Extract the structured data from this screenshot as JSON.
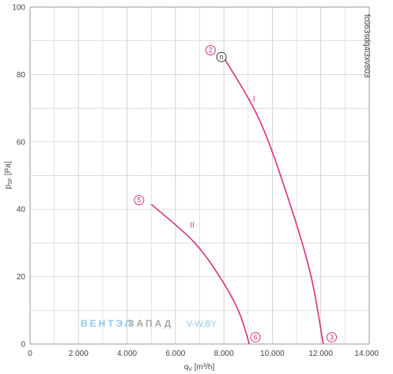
{
  "chart_data": {
    "type": "line",
    "xlabel": "qV [m³/h]",
    "ylabel": "pSF [Pa]",
    "xlim": [
      0,
      14000
    ],
    "ylim": [
      0,
      100
    ],
    "x_ticks": [
      0,
      2000,
      4000,
      6000,
      8000,
      10000,
      12000,
      14000
    ],
    "x_tick_labels": [
      "0",
      "2.000",
      "4.000",
      "6.000",
      "8.000",
      "10.000",
      "12.000",
      "14.000"
    ],
    "y_ticks": [
      0,
      20,
      40,
      60,
      80,
      100
    ],
    "y_tick_labels": [
      "0",
      "20",
      "40",
      "60",
      "80",
      "100"
    ],
    "grid": true,
    "series": [
      {
        "name": "I",
        "color": "#d6307e",
        "x": [
          8000,
          9500,
          10800,
          11600,
          12100
        ],
        "y": [
          85,
          66,
          40,
          20,
          0
        ]
      },
      {
        "name": "II",
        "color": "#d6307e",
        "x": [
          5000,
          6800,
          8000,
          8650,
          9050
        ],
        "y": [
          41.5,
          30,
          18,
          9,
          0
        ]
      }
    ],
    "markers": [
      {
        "label": "2",
        "x": 7450,
        "y": 87.2
      },
      {
        "label": "5",
        "x": 4500,
        "y": 42.7
      },
      {
        "label": "6",
        "x": 9300,
        "y": 2
      },
      {
        "label": "3",
        "x": 12450,
        "y": 2
      }
    ],
    "operating_point": {
      "label": "n",
      "x": 7900,
      "y": 85.2
    },
    "series_labels": [
      {
        "text": "I",
        "x": 9200,
        "y": 72
      },
      {
        "text": "II",
        "x": 6600,
        "y": 34.5
      }
    ],
    "side_code": "fc063sdq4i3xv803"
  },
  "watermark": {
    "part1": "ВЕНТЭЛ",
    "part2": "ЗАПАД",
    "part3": "V-W.BY"
  }
}
